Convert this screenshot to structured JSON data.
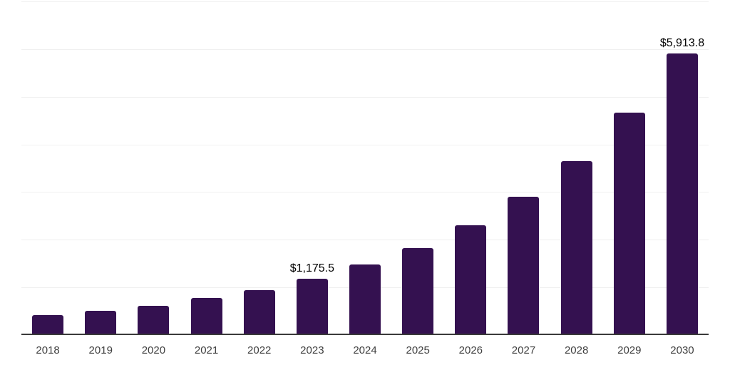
{
  "chart_data": {
    "type": "bar",
    "title": "",
    "xlabel": "",
    "ylabel": "",
    "categories": [
      "2018",
      "2019",
      "2020",
      "2021",
      "2022",
      "2023",
      "2024",
      "2025",
      "2026",
      "2027",
      "2028",
      "2029",
      "2030"
    ],
    "values": [
      420,
      505,
      620,
      775,
      950,
      1175.5,
      1480,
      1830,
      2300,
      2900,
      3650,
      4660,
      5913.8
    ],
    "data_labels": {
      "2023": "$1,175.5",
      "2030": "$5,913.8"
    },
    "ylim": [
      0,
      7000
    ],
    "gridline_step": 1000,
    "grid": "horizontal",
    "legend": "none",
    "colors": {
      "bar": "#341150",
      "axis_line": "#3a3a3a",
      "gridline": "#f0f0f0",
      "value_label": "#000000",
      "tick_label": "#3f3f3f",
      "background": "#ffffff"
    }
  }
}
